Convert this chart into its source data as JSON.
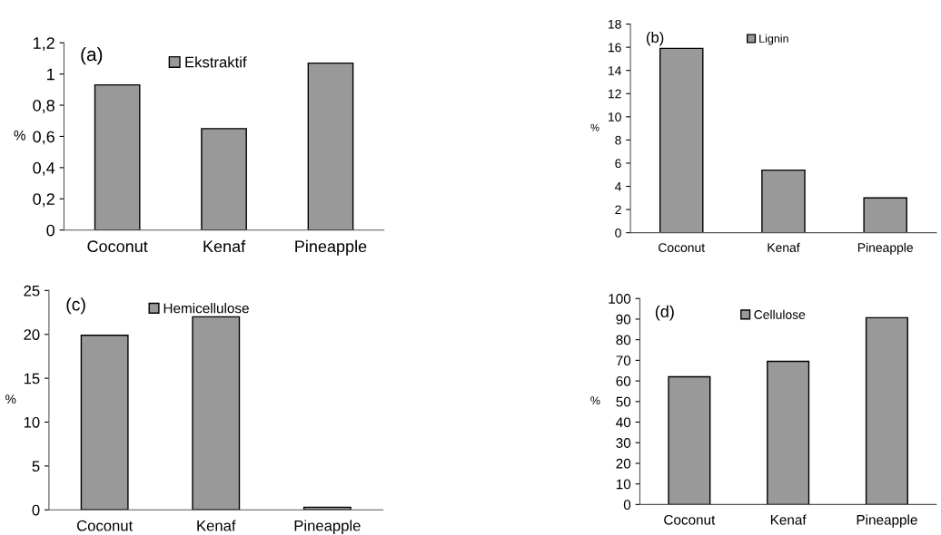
{
  "chart_data": [
    {
      "type": "bar",
      "categories": [
        "Coconut",
        "Kenaf",
        "Pineapple"
      ],
      "ylabel": "%",
      "annotations": [
        "(a)"
      ],
      "legend": "top",
      "series": [
        {
          "name": "Ekstraktif",
          "color": "#999999",
          "values": [
            0.93,
            0.65,
            1.07
          ]
        }
      ],
      "ylim": [
        0,
        1.2
      ],
      "yticks": [
        0,
        {
          "value": 0.2,
          "label": "0,2"
        },
        {
          "value": 0.4,
          "label": "0,4"
        },
        {
          "value": 0.6,
          "label": "0,6"
        },
        {
          "value": 0.8,
          "label": "0,8"
        },
        1,
        {
          "value": 1.2,
          "label": "1,2"
        }
      ]
    },
    {
      "type": "bar",
      "categories": [
        "Coconut",
        "Kenaf",
        "Pineapple"
      ],
      "ylabel": "%",
      "annotations": [
        "(b)"
      ],
      "legend": "top",
      "series": [
        {
          "name": "Lignin",
          "color": "#999999",
          "values": [
            15.9,
            5.4,
            3.0
          ]
        }
      ],
      "ylim": [
        0,
        18
      ],
      "yticks": [
        0,
        2,
        4,
        6,
        8,
        10,
        12,
        14,
        16,
        18
      ]
    },
    {
      "type": "bar",
      "categories": [
        "Coconut",
        "Kenaf",
        "Pineapple"
      ],
      "ylabel": "%",
      "annotations": [
        "(c)"
      ],
      "legend": "top",
      "series": [
        {
          "name": "Hemicellulose",
          "color": "#999999",
          "values": [
            19.9,
            22.0,
            0.3
          ]
        }
      ],
      "ylim": [
        0,
        25
      ],
      "yticks": [
        0,
        5,
        10,
        15,
        20,
        25
      ]
    },
    {
      "type": "bar",
      "categories": [
        "Coconut",
        "Kenaf",
        "Pineapple"
      ],
      "ylabel": "%",
      "annotations": [
        "(d)"
      ],
      "legend": "top",
      "series": [
        {
          "name": "Cellulose",
          "color": "#999999",
          "values": [
            62,
            69.5,
            90.7
          ]
        }
      ],
      "ylim": [
        0,
        100
      ],
      "yticks": [
        0,
        10,
        20,
        30,
        40,
        50,
        60,
        70,
        80,
        90,
        100
      ]
    }
  ]
}
